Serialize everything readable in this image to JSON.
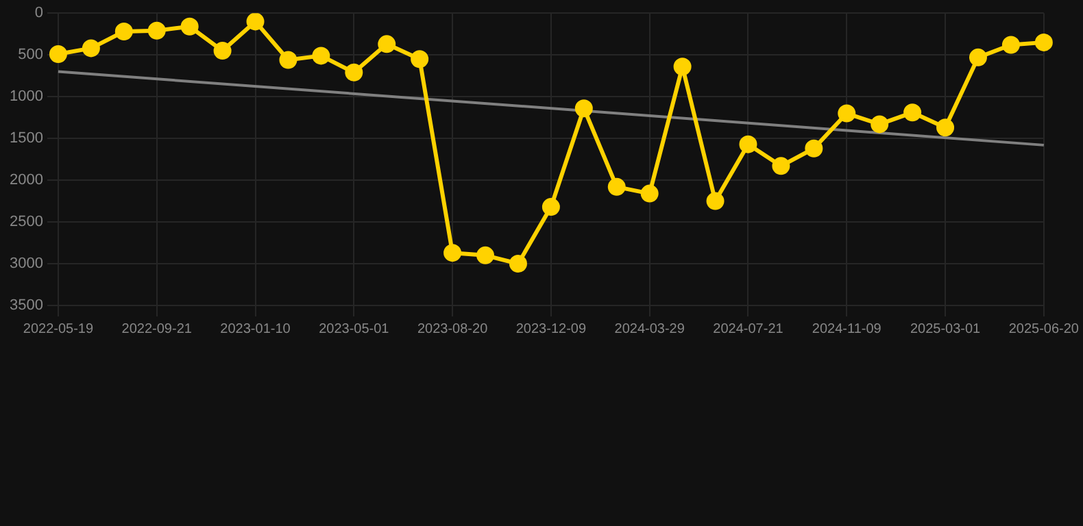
{
  "chart_data": {
    "type": "line",
    "categories": [
      "2022-05-19",
      null,
      null,
      "2022-09-21",
      null,
      null,
      "2023-01-10",
      null,
      null,
      "2023-05-01",
      null,
      null,
      "2023-08-20",
      null,
      null,
      "2023-12-09",
      null,
      null,
      "2024-03-29",
      null,
      null,
      "2024-07-21",
      null,
      null,
      "2024-11-09",
      null,
      null,
      "2025-03-01",
      null,
      null,
      "2025-06-20"
    ],
    "series": [
      {
        "color": "#ffd200",
        "marker": "circle",
        "values": [
          490,
          420,
          220,
          210,
          160,
          450,
          100,
          560,
          510,
          710,
          370,
          550,
          2870,
          2900,
          3000,
          2320,
          1140,
          2080,
          2160,
          640,
          2250,
          1570,
          1830,
          1620,
          1200,
          1330,
          1190,
          1370,
          530,
          380,
          350
        ]
      },
      {
        "type": "line",
        "color": "#808080",
        "marker": "none",
        "values": [
          700,
          null,
          null,
          null,
          null,
          null,
          null,
          null,
          null,
          null,
          null,
          null,
          null,
          null,
          null,
          null,
          null,
          null,
          null,
          null,
          null,
          null,
          null,
          null,
          null,
          null,
          null,
          null,
          null,
          null,
          1580
        ]
      }
    ],
    "ylim": [
      3500,
      0
    ],
    "yticks": [
      0,
      500,
      1000,
      1500,
      2000,
      2500,
      3000,
      3500
    ],
    "grid": true,
    "legend": false
  }
}
